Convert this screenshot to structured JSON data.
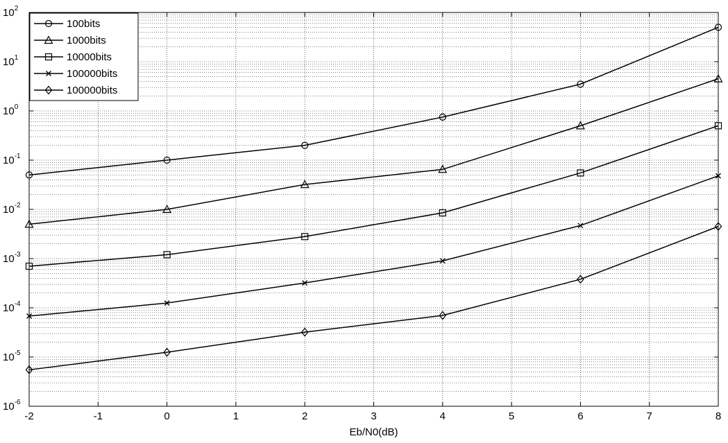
{
  "chart_data": {
    "type": "line",
    "title": "",
    "xlabel": "Eb/N0(dB)",
    "ylabel": "",
    "xscale": "linear",
    "yscale": "log",
    "xlim": [
      -2,
      8
    ],
    "ylim": [
      1e-06,
      100
    ],
    "xticks": [
      "-2",
      "-1",
      "0",
      "1",
      "2",
      "3",
      "4",
      "5",
      "6",
      "7",
      "8"
    ],
    "yticks": [
      {
        "base": "10",
        "exp": "-6"
      },
      {
        "base": "10",
        "exp": "-5"
      },
      {
        "base": "10",
        "exp": "-4"
      },
      {
        "base": "10",
        "exp": "-3"
      },
      {
        "base": "10",
        "exp": "-2"
      },
      {
        "base": "10",
        "exp": "-1"
      },
      {
        "base": "10",
        "exp": "0"
      },
      {
        "base": "10",
        "exp": "1"
      },
      {
        "base": "10",
        "exp": "2"
      }
    ],
    "grid": true,
    "legend_position": "top-left",
    "x": [
      -2,
      0,
      2,
      4,
      6,
      8
    ],
    "series": [
      {
        "name": "100bits",
        "marker": "circle",
        "values": [
          0.05,
          0.1,
          0.2,
          0.75,
          3.5,
          50
        ]
      },
      {
        "name": "1000bits",
        "marker": "triangle",
        "values": [
          0.005,
          0.01,
          0.032,
          0.065,
          0.5,
          4.5
        ]
      },
      {
        "name": "10000bits",
        "marker": "square",
        "values": [
          0.0007,
          0.0012,
          0.0028,
          0.0085,
          0.055,
          0.5
        ]
      },
      {
        "name": "100000bits",
        "marker": "x",
        "values": [
          6.8e-05,
          0.000125,
          0.00032,
          0.0009,
          0.0047,
          0.048
        ]
      },
      {
        "name": "100000bits",
        "marker": "diamond",
        "values": [
          5.5e-06,
          1.25e-05,
          3.2e-05,
          7e-05,
          0.00038,
          0.0045
        ]
      }
    ]
  }
}
